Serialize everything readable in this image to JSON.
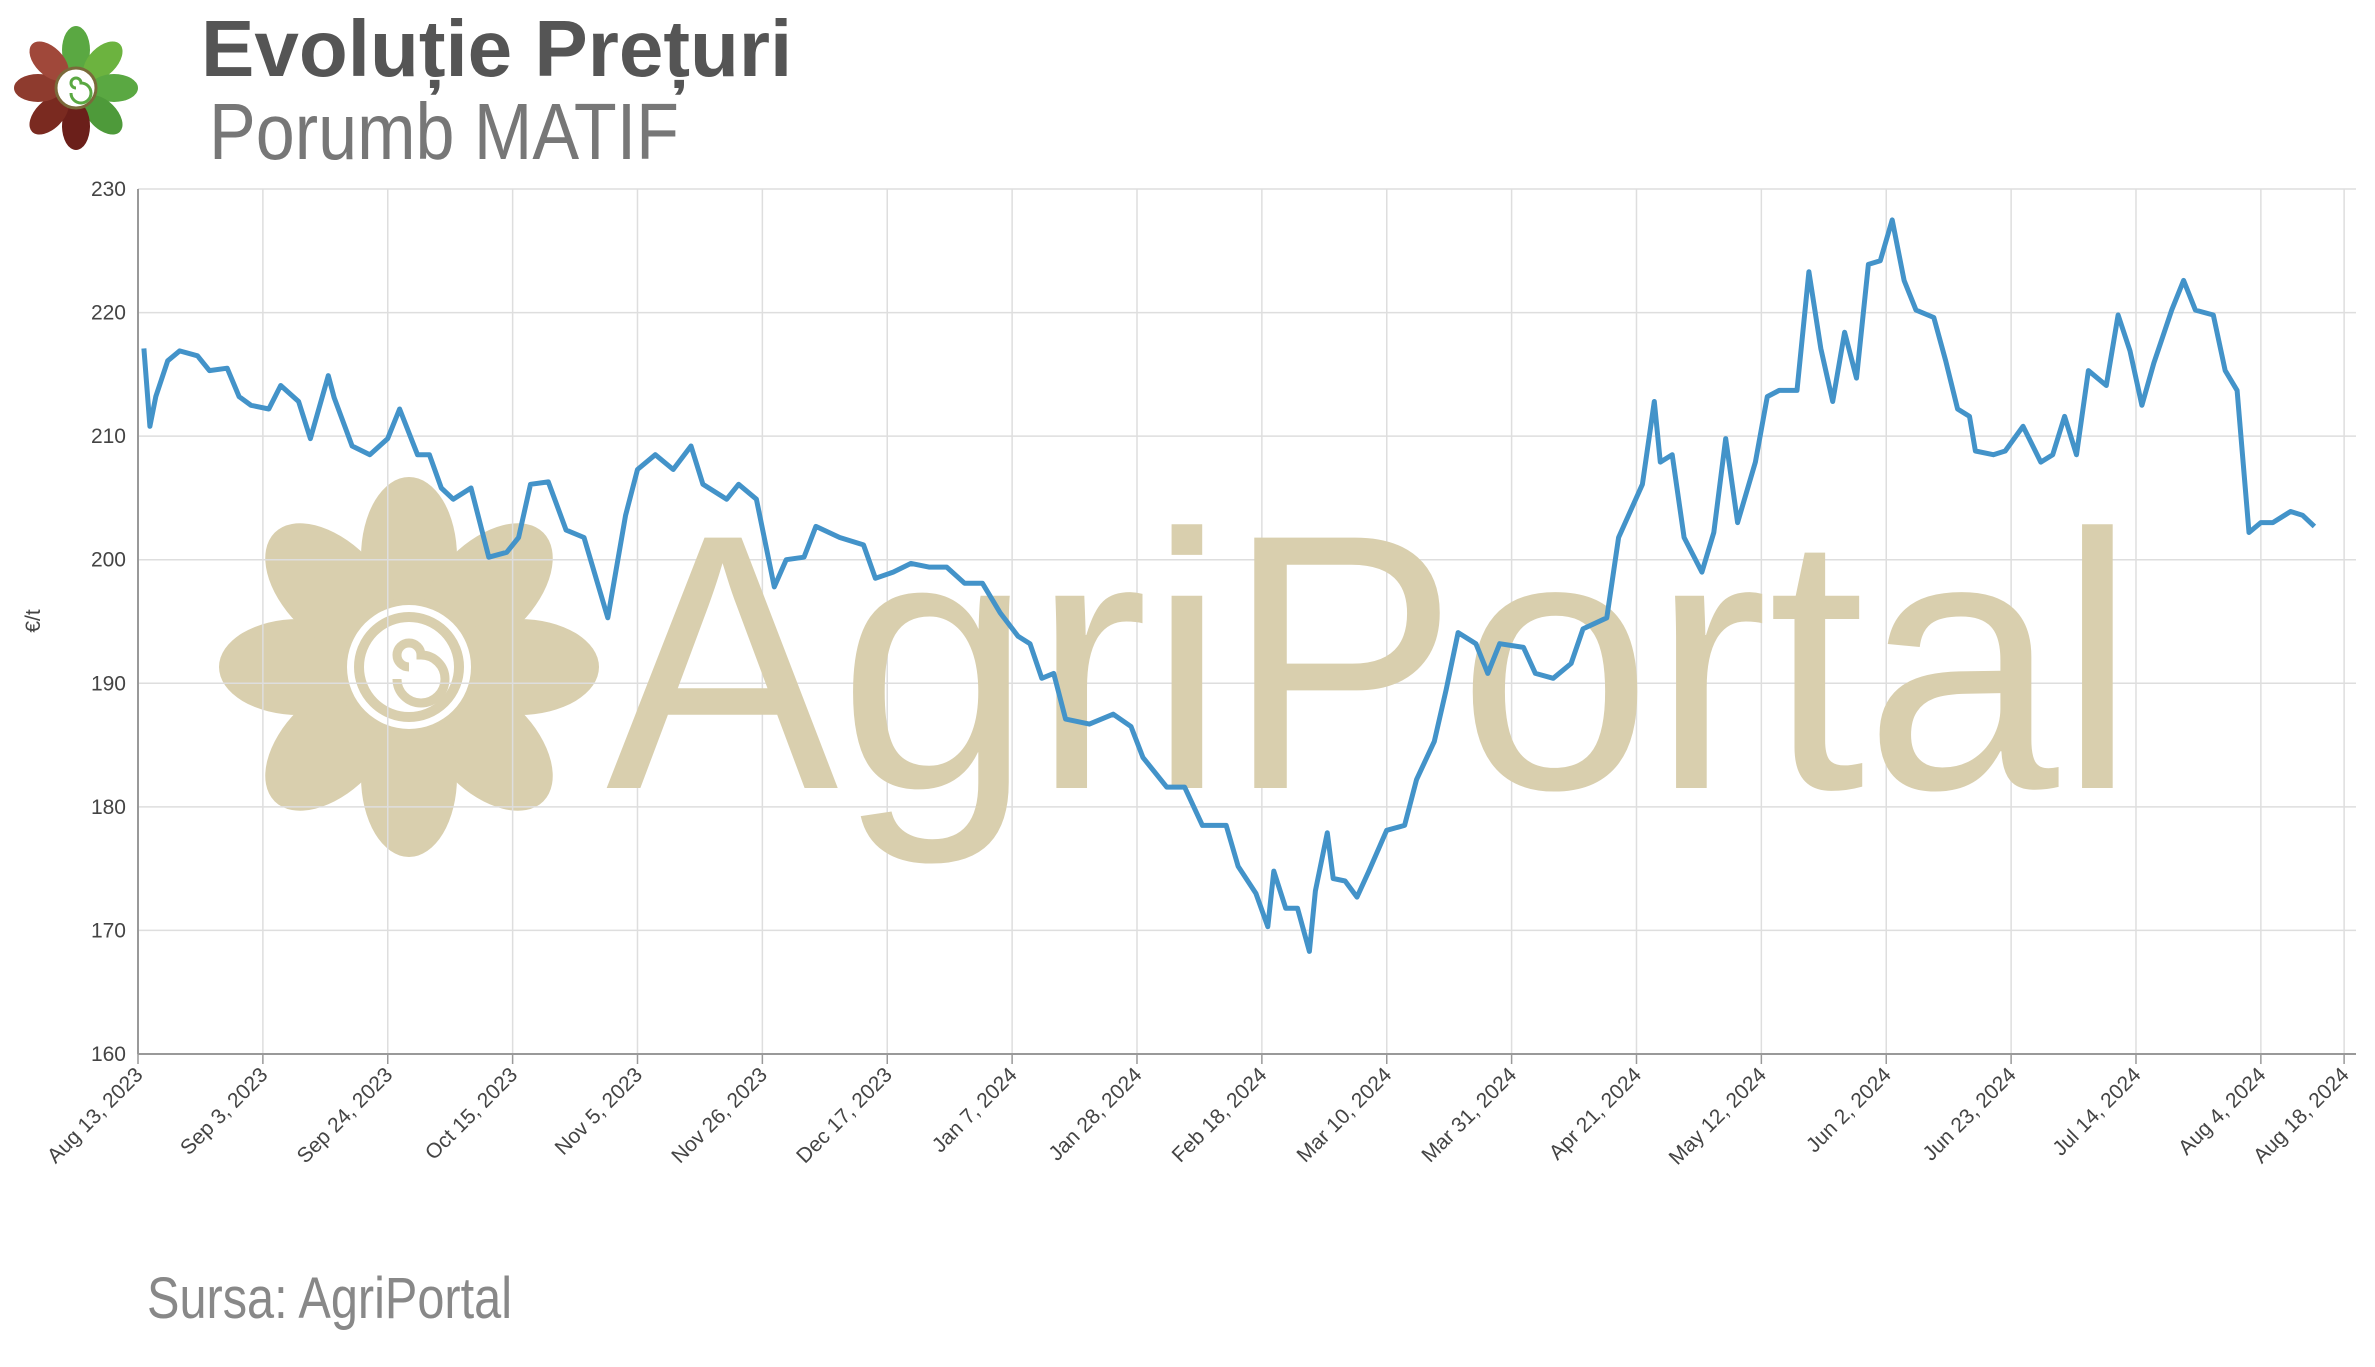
{
  "chart_data": {
    "type": "line",
    "title": "Evoluție Prețuri",
    "subtitle": "Porumb MATIF",
    "source": "Sursa: AgriPortal",
    "watermark": "AgriPortal",
    "y_label": "€/t",
    "x": [
      "2023-08-14",
      "2023-08-15",
      "2023-08-16",
      "2023-08-18",
      "2023-08-20",
      "2023-08-23",
      "2023-08-25",
      "2023-08-28",
      "2023-08-30",
      "2023-09-01",
      "2023-09-04",
      "2023-09-06",
      "2023-09-09",
      "2023-09-11",
      "2023-09-14",
      "2023-09-15",
      "2023-09-18",
      "2023-09-21",
      "2023-09-24",
      "2023-09-26",
      "2023-09-29",
      "2023-10-01",
      "2023-10-03",
      "2023-10-05",
      "2023-10-08",
      "2023-10-11",
      "2023-10-14",
      "2023-10-16",
      "2023-10-18",
      "2023-10-21",
      "2023-10-24",
      "2023-10-27",
      "2023-10-31",
      "2023-11-03",
      "2023-11-05",
      "2023-11-08",
      "2023-11-11",
      "2023-11-14",
      "2023-11-16",
      "2023-11-20",
      "2023-11-22",
      "2023-11-25",
      "2023-11-28",
      "2023-11-30",
      "2023-12-03",
      "2023-12-05",
      "2023-12-09",
      "2023-12-13",
      "2023-12-15",
      "2023-12-18",
      "2023-12-21",
      "2023-12-24",
      "2023-12-27",
      "2023-12-30",
      "2024-01-02",
      "2024-01-05",
      "2024-01-08",
      "2024-01-10",
      "2024-01-12",
      "2024-01-14",
      "2024-01-16",
      "2024-01-20",
      "2024-01-24",
      "2024-01-27",
      "2024-01-29",
      "2024-02-02",
      "2024-02-05",
      "2024-02-08",
      "2024-02-12",
      "2024-02-14",
      "2024-02-17",
      "2024-02-19",
      "2024-02-20",
      "2024-02-22",
      "2024-02-24",
      "2024-02-26",
      "2024-02-27",
      "2024-02-29",
      "2024-03-01",
      "2024-03-03",
      "2024-03-05",
      "2024-03-07",
      "2024-03-10",
      "2024-03-13",
      "2024-03-15",
      "2024-03-18",
      "2024-03-20",
      "2024-03-22",
      "2024-03-25",
      "2024-03-27",
      "2024-03-29",
      "2024-04-02",
      "2024-04-04",
      "2024-04-07",
      "2024-04-10",
      "2024-04-12",
      "2024-04-16",
      "2024-04-18",
      "2024-04-22",
      "2024-04-24",
      "2024-04-25",
      "2024-04-27",
      "2024-04-29",
      "2024-05-02",
      "2024-05-04",
      "2024-05-06",
      "2024-05-08",
      "2024-05-11",
      "2024-05-13",
      "2024-05-15",
      "2024-05-18",
      "2024-05-20",
      "2024-05-22",
      "2024-05-24",
      "2024-05-26",
      "2024-05-28",
      "2024-05-30",
      "2024-06-01",
      "2024-06-03",
      "2024-06-05",
      "2024-06-07",
      "2024-06-10",
      "2024-06-12",
      "2024-06-14",
      "2024-06-16",
      "2024-06-17",
      "2024-06-20",
      "2024-06-22",
      "2024-06-25",
      "2024-06-28",
      "2024-06-30",
      "2024-07-02",
      "2024-07-04",
      "2024-07-06",
      "2024-07-09",
      "2024-07-11",
      "2024-07-13",
      "2024-07-15",
      "2024-07-17",
      "2024-07-20",
      "2024-07-22",
      "2024-07-24",
      "2024-07-27",
      "2024-07-29",
      "2024-07-31",
      "2024-08-02",
      "2024-08-04",
      "2024-08-06",
      "2024-08-09",
      "2024-08-11",
      "2024-08-13"
    ],
    "series": [
      {
        "name": "Porumb MATIF",
        "color": "#4393c9",
        "values": [
          217.1,
          210.8,
          213.2,
          216.1,
          216.9,
          216.5,
          215.3,
          215.5,
          213.2,
          212.5,
          212.2,
          214.1,
          212.8,
          209.8,
          214.9,
          213.1,
          209.2,
          208.5,
          209.8,
          212.2,
          208.5,
          208.5,
          205.8,
          204.9,
          205.8,
          200.2,
          200.6,
          201.8,
          206.1,
          206.3,
          202.4,
          201.8,
          195.3,
          203.6,
          207.3,
          208.5,
          207.3,
          209.2,
          206.1,
          204.9,
          206.1,
          204.9,
          197.8,
          200.0,
          200.2,
          202.7,
          201.8,
          201.2,
          198.5,
          199.0,
          199.7,
          199.4,
          199.4,
          198.1,
          198.1,
          195.7,
          193.8,
          193.2,
          190.4,
          190.8,
          187.1,
          186.7,
          187.5,
          186.5,
          184.0,
          181.6,
          181.6,
          178.5,
          178.5,
          175.2,
          173.0,
          170.3,
          174.8,
          171.8,
          171.8,
          168.3,
          173.2,
          177.9,
          174.2,
          174.0,
          172.7,
          174.8,
          178.1,
          178.5,
          182.2,
          185.3,
          189.5,
          194.1,
          193.2,
          190.8,
          193.2,
          192.9,
          190.8,
          190.4,
          191.6,
          194.4,
          195.3,
          201.8,
          206.1,
          212.8,
          207.9,
          208.5,
          201.8,
          199.0,
          202.2,
          209.8,
          203.0,
          207.9,
          213.2,
          213.7,
          213.7,
          223.3,
          217.1,
          212.8,
          218.4,
          214.7,
          223.9,
          224.2,
          227.5,
          222.6,
          220.2,
          219.6,
          216.1,
          212.2,
          211.6,
          208.8,
          208.5,
          208.8,
          210.8,
          207.9,
          208.5,
          211.6,
          208.5,
          215.3,
          214.1,
          219.8,
          216.9,
          212.5,
          215.9,
          220.2,
          222.6,
          220.2,
          219.8,
          215.3,
          213.7,
          202.2,
          203.0,
          203.0,
          203.9,
          203.6,
          202.7
        ]
      }
    ],
    "xlim": [
      "2023-08-13",
      "2024-08-20"
    ],
    "xticks": [
      {
        "value": "2023-08-13",
        "label": "Aug 13, 2023"
      },
      {
        "value": "2023-09-03",
        "label": "Sep 3, 2023"
      },
      {
        "value": "2023-09-24",
        "label": "Sep 24, 2023"
      },
      {
        "value": "2023-10-15",
        "label": "Oct 15, 2023"
      },
      {
        "value": "2023-11-05",
        "label": "Nov 5, 2023"
      },
      {
        "value": "2023-11-26",
        "label": "Nov 26, 2023"
      },
      {
        "value": "2023-12-17",
        "label": "Dec 17, 2023"
      },
      {
        "value": "2024-01-07",
        "label": "Jan 7, 2024"
      },
      {
        "value": "2024-01-28",
        "label": "Jan 28, 2024"
      },
      {
        "value": "2024-02-18",
        "label": "Feb 18, 2024"
      },
      {
        "value": "2024-03-10",
        "label": "Mar 10, 2024"
      },
      {
        "value": "2024-03-31",
        "label": "Mar 31, 2024"
      },
      {
        "value": "2024-04-21",
        "label": "Apr 21, 2024"
      },
      {
        "value": "2024-05-12",
        "label": "May 12, 2024"
      },
      {
        "value": "2024-06-02",
        "label": "Jun 2, 2024"
      },
      {
        "value": "2024-06-23",
        "label": "Jun 23, 2024"
      },
      {
        "value": "2024-07-14",
        "label": "Jul 14, 2024"
      },
      {
        "value": "2024-08-04",
        "label": "Aug 4, 2024"
      },
      {
        "value": "2024-08-18",
        "label": "Aug 18, 2024"
      }
    ],
    "ylim": [
      160,
      230
    ],
    "yticks": [
      160,
      170,
      180,
      190,
      200,
      210,
      220,
      230
    ],
    "grid": true
  }
}
